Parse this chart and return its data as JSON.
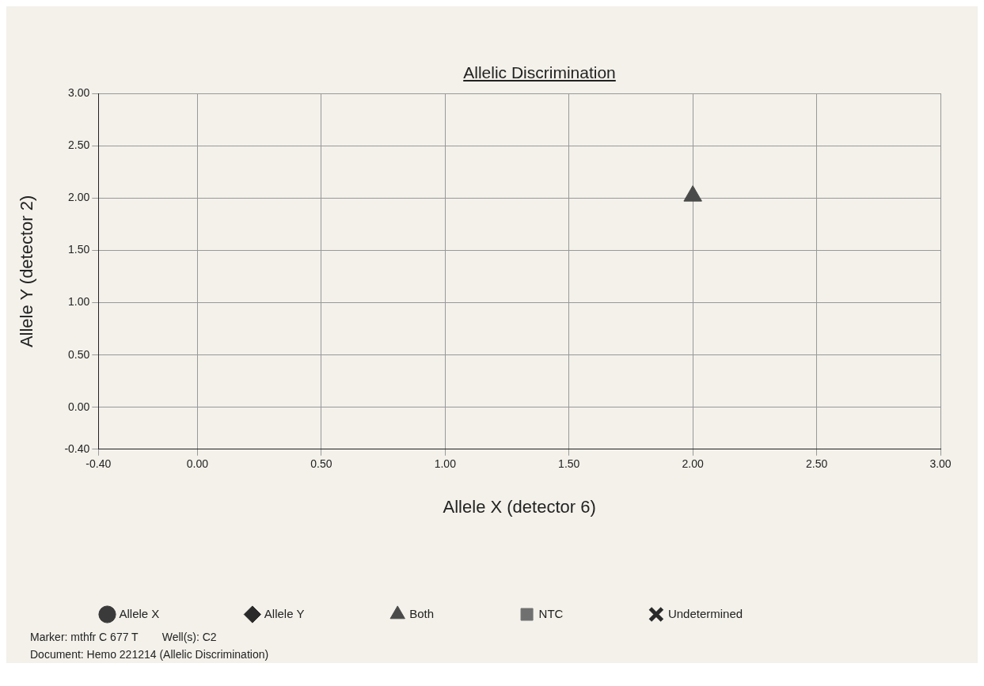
{
  "chart_data": {
    "type": "scatter",
    "title": "Allelic Discrimination",
    "xlabel": "Allele X (detector 6)",
    "ylabel": "Allele Y (detector 2)",
    "xlim": [
      -0.4,
      3
    ],
    "ylim": [
      -0.4,
      3
    ],
    "xticks": [
      {
        "value": -0.4,
        "label": "-0.40"
      },
      {
        "value": 0,
        "label": "0.00"
      },
      {
        "value": 0.5,
        "label": "0.50"
      },
      {
        "value": 1,
        "label": "1.00"
      },
      {
        "value": 1.5,
        "label": "1.50"
      },
      {
        "value": 2,
        "label": "2.00"
      },
      {
        "value": 2.5,
        "label": "2.50"
      },
      {
        "value": 3,
        "label": "3.00"
      }
    ],
    "yticks": [
      {
        "value": -0.4,
        "label": "-0.40"
      },
      {
        "value": 0,
        "label": "0.00"
      },
      {
        "value": 0.5,
        "label": "0.50"
      },
      {
        "value": 1,
        "label": "1.00"
      },
      {
        "value": 1.5,
        "label": "1.50"
      },
      {
        "value": 2,
        "label": "2.00"
      },
      {
        "value": 2.5,
        "label": "2.50"
      },
      {
        "value": 3,
        "label": "3.00"
      }
    ],
    "grid": true,
    "legend": "bottom",
    "series": [
      {
        "name": "Allele X",
        "color": "#3a3a3a",
        "marker": "circle"
      },
      {
        "name": "Allele Y",
        "color": "#2a2a2a",
        "marker": "diamond"
      },
      {
        "name": "Both",
        "color": "#4a4a4a",
        "marker": "triangle",
        "x": [
          2.0
        ],
        "values": [
          2.02
        ]
      },
      {
        "name": "NTC",
        "color": "#707070",
        "marker": "square"
      },
      {
        "name": "Undetermined",
        "color": "#2a2a2a",
        "marker": "cross"
      }
    ],
    "annotations": [
      "Marker: mthfr C 677 T",
      "Well(s): C2",
      "Document: Hemo 221214 (Allelic Discrimination)"
    ]
  }
}
